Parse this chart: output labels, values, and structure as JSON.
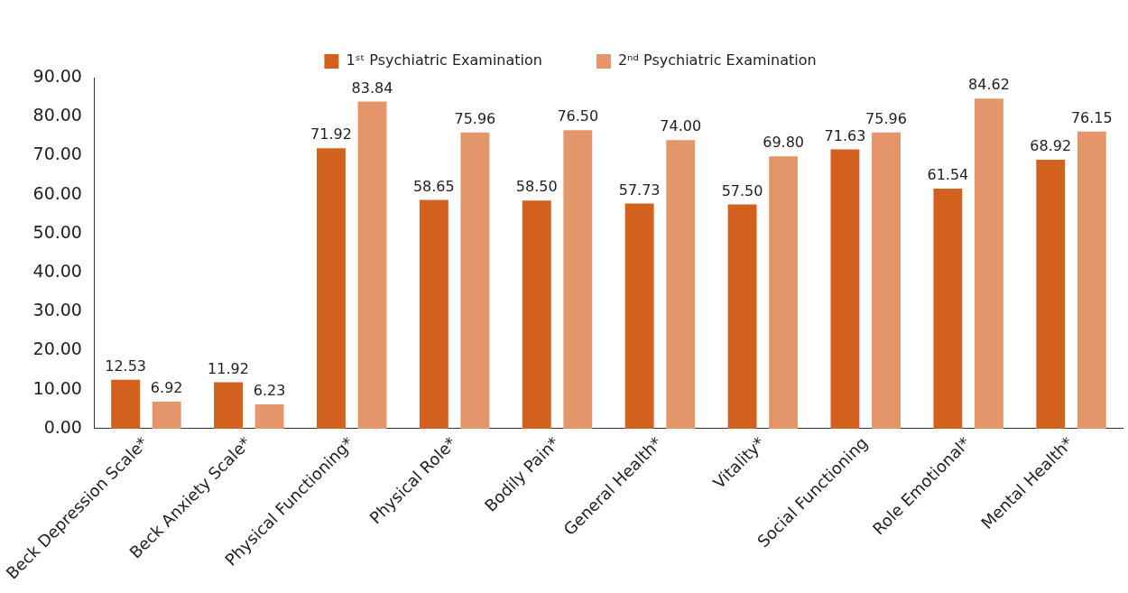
{
  "chart_data": {
    "type": "bar",
    "categories": [
      "Beck Depression Scale*",
      "Beck Anxiety Scale*",
      "Physical Functioning*",
      "Physical Role*",
      "Bodily Pain*",
      "General Health*",
      "Vitality*",
      "Social Functioning",
      "Role Emotional*",
      "Mental Health*"
    ],
    "series": [
      {
        "name": "1ˢᵗ Psychiatric Examination",
        "color": "#d2601f",
        "values": [
          12.53,
          11.92,
          71.92,
          58.65,
          58.5,
          57.73,
          57.5,
          71.63,
          61.54,
          68.92
        ],
        "value_labels": [
          "12.53",
          "11.92",
          "71.92",
          "58.65",
          "58.50",
          "57.73",
          "57.50",
          "71.63",
          "61.54",
          "68.92"
        ]
      },
      {
        "name": "2ⁿᵈ Psychiatric Examination",
        "color": "#e4966a",
        "values": [
          6.92,
          6.23,
          83.84,
          75.96,
          76.5,
          74,
          69.8,
          75.96,
          84.62,
          76.15
        ],
        "value_labels": [
          "6.92",
          "6.23",
          "83.84",
          "75.96",
          "76.50",
          "74.00",
          "69.80",
          "75.96",
          "84.62",
          "76.15"
        ]
      }
    ],
    "ylim": [
      0,
      90
    ],
    "yticks": [
      {
        "value": 0,
        "label": "0.00"
      },
      {
        "value": 10,
        "label": "10.00"
      },
      {
        "value": 20,
        "label": "20.00"
      },
      {
        "value": 30,
        "label": "30.00"
      },
      {
        "value": 40,
        "label": "40.00"
      },
      {
        "value": 50,
        "label": "50.00"
      },
      {
        "value": 60,
        "label": "60.00"
      },
      {
        "value": 70,
        "label": "70.00"
      },
      {
        "value": 80,
        "label": "80.00"
      },
      {
        "value": 90,
        "label": "90.00"
      }
    ],
    "grid": false,
    "legend": "top"
  }
}
